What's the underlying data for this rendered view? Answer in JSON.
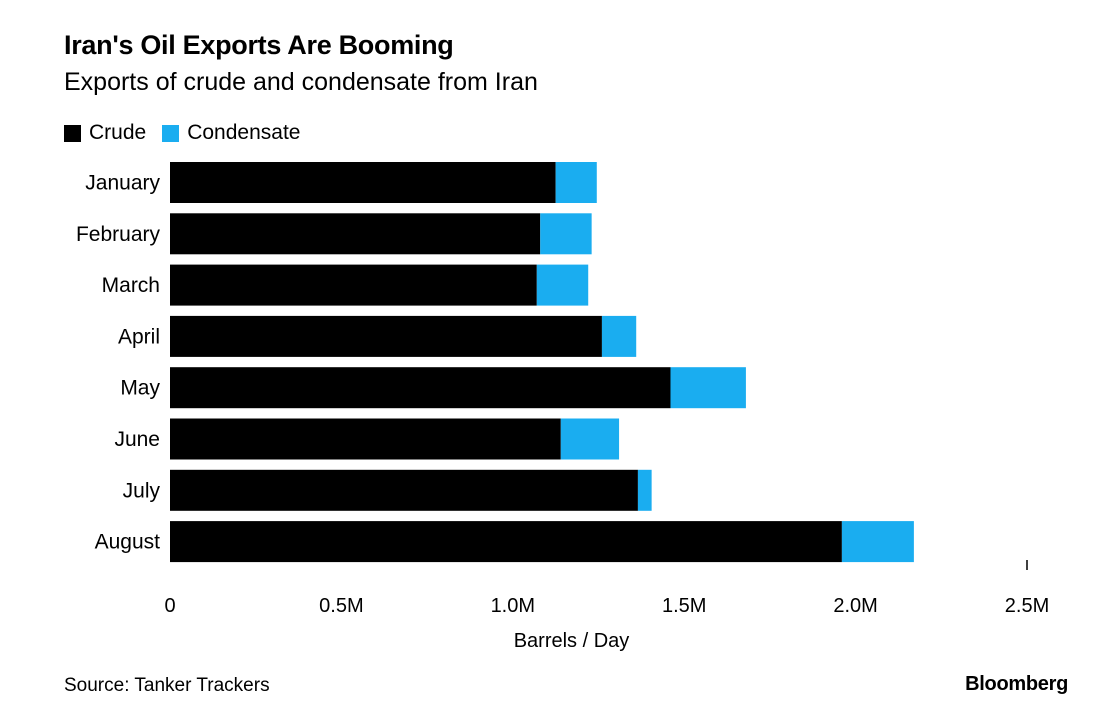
{
  "chart_data": {
    "type": "bar",
    "orientation": "horizontal",
    "stacked": true,
    "title": "Iran's Oil Exports Are Booming",
    "subtitle": "Exports of crude and condensate from Iran",
    "categories": [
      "January",
      "February",
      "March",
      "April",
      "May",
      "June",
      "July",
      "August"
    ],
    "series": [
      {
        "name": "Crude",
        "color": "#000000",
        "values": [
          1125000,
          1080000,
          1070000,
          1260000,
          1460000,
          1140000,
          1365000,
          1960000
        ]
      },
      {
        "name": "Condensate",
        "color": "#1aadf0",
        "values": [
          120000,
          150000,
          150000,
          100000,
          220000,
          170000,
          40000,
          210000
        ]
      }
    ],
    "xlabel": "Barrels / Day",
    "ylabel": "",
    "xlim": [
      0,
      2500000
    ],
    "xticks": [
      {
        "value": 0,
        "label": "0"
      },
      {
        "value": 500000,
        "label": "0.5M"
      },
      {
        "value": 1000000,
        "label": "1.0M"
      },
      {
        "value": 1500000,
        "label": "1.5M"
      },
      {
        "value": 2000000,
        "label": "2.0M"
      },
      {
        "value": 2500000,
        "label": "2.5M"
      }
    ],
    "grid": false,
    "legend_position": "top-left"
  },
  "footer": {
    "source": "Source: Tanker Trackers",
    "brand": "Bloomberg"
  }
}
